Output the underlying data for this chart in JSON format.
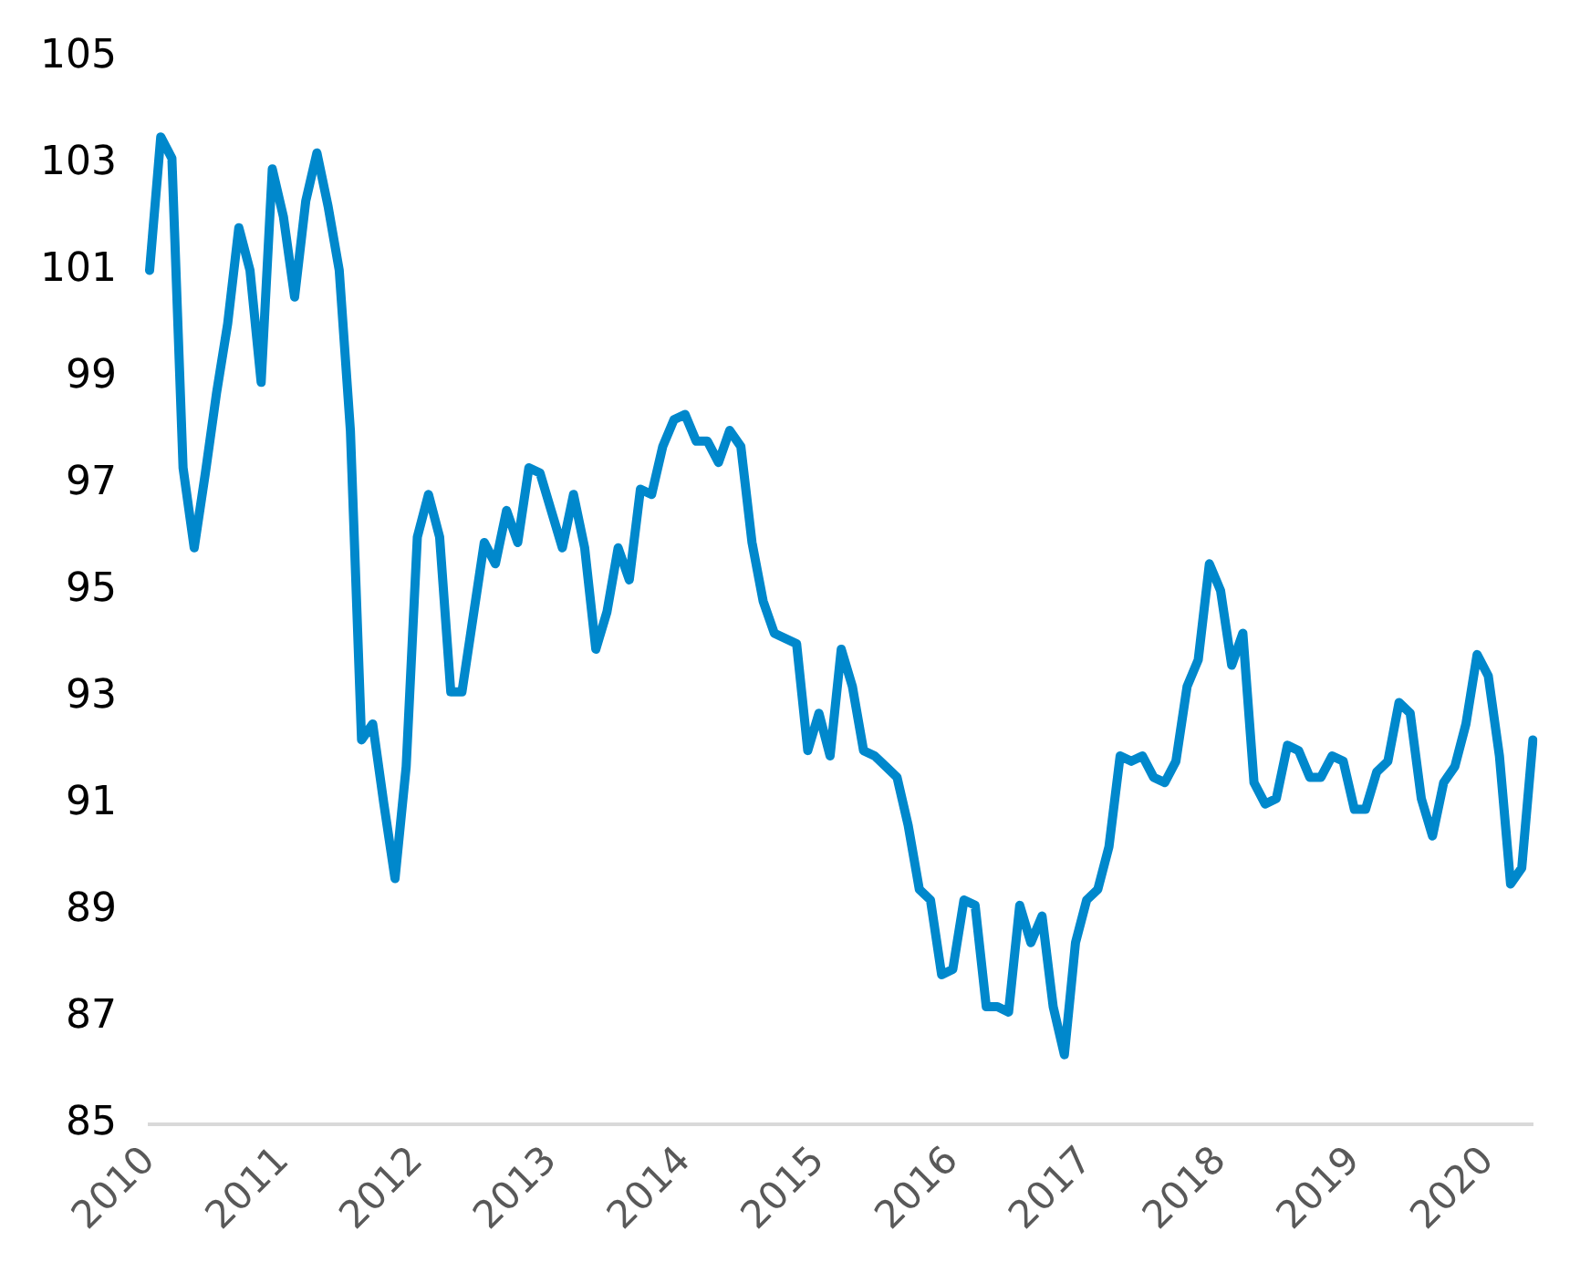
{
  "chart_data": {
    "type": "line",
    "categories": [
      "2010",
      null,
      null,
      null,
      null,
      null,
      null,
      null,
      null,
      null,
      null,
      null,
      "2011",
      null,
      null,
      null,
      null,
      null,
      null,
      null,
      null,
      null,
      null,
      null,
      "2012",
      null,
      null,
      null,
      null,
      null,
      null,
      null,
      null,
      null,
      null,
      null,
      "2013",
      null,
      null,
      null,
      null,
      null,
      null,
      null,
      null,
      null,
      null,
      null,
      "2014",
      null,
      null,
      null,
      null,
      null,
      null,
      null,
      null,
      null,
      null,
      null,
      "2015",
      null,
      null,
      null,
      null,
      null,
      null,
      null,
      null,
      null,
      null,
      null,
      "2016",
      null,
      null,
      null,
      null,
      null,
      null,
      null,
      null,
      null,
      null,
      null,
      "2017",
      null,
      null,
      null,
      null,
      null,
      null,
      null,
      null,
      null,
      null,
      null,
      "2018",
      null,
      null,
      null,
      null,
      null,
      null,
      null,
      null,
      null,
      null,
      null,
      "2019",
      null,
      null,
      null,
      null,
      null,
      null,
      null,
      null,
      null,
      null,
      null,
      "2020",
      null,
      null,
      null,
      null
    ],
    "series": [
      {
        "color": "#0088cc",
        "values": [
          101.0,
          103.5,
          103.1,
          97.3,
          95.8,
          97.2,
          98.7,
          100.0,
          101.8,
          101.0,
          98.9,
          102.9,
          102.0,
          100.5,
          102.3,
          103.2,
          102.2,
          101.0,
          98.0,
          92.2,
          92.5,
          91.0,
          89.6,
          91.7,
          96.0,
          96.8,
          96.0,
          93.1,
          93.1,
          94.5,
          95.9,
          95.5,
          96.5,
          95.9,
          97.3,
          97.2,
          96.5,
          95.8,
          96.8,
          95.8,
          93.9,
          94.6,
          95.8,
          95.2,
          96.9,
          96.8,
          97.7,
          98.2,
          98.3,
          97.8,
          97.8,
          97.4,
          98.0,
          97.7,
          95.9,
          94.8,
          94.2,
          94.1,
          94.0,
          92.0,
          92.7,
          91.9,
          93.9,
          93.2,
          92.0,
          91.9,
          91.7,
          91.5,
          90.6,
          89.4,
          89.2,
          87.8,
          87.9,
          89.2,
          89.1,
          87.2,
          87.2,
          87.1,
          89.1,
          88.4,
          88.9,
          87.2,
          86.3,
          88.4,
          89.2,
          89.4,
          90.2,
          91.9,
          91.8,
          91.9,
          91.5,
          91.4,
          91.8,
          93.2,
          93.7,
          95.5,
          95.0,
          93.6,
          94.2,
          91.4,
          91.0,
          91.1,
          92.1,
          92.0,
          91.5,
          91.5,
          91.9,
          91.8,
          90.9,
          90.9,
          91.6,
          91.8,
          92.9,
          92.7,
          91.1,
          90.4,
          91.4,
          91.7,
          92.5,
          93.8,
          93.4,
          91.9,
          89.5,
          89.8,
          92.2
        ]
      }
    ],
    "ylim": [
      85,
      105
    ],
    "yticks": [
      85,
      87,
      89,
      91,
      93,
      95,
      97,
      99,
      101,
      103,
      105
    ],
    "grid": false,
    "legend": false,
    "marker": "none",
    "line_style": "solid"
  }
}
